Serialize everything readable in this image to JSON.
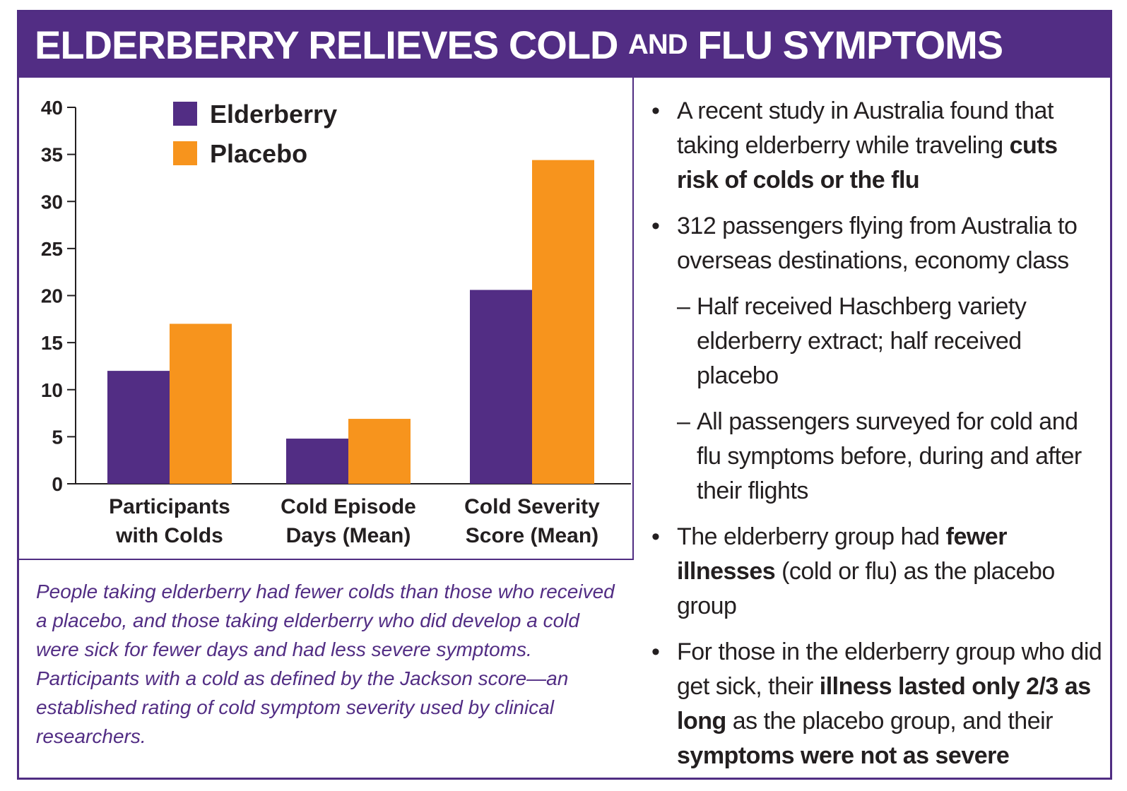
{
  "title": {
    "main1": "ELDERBERRY RELIEVES COLD",
    "small": "AND",
    "main2": "FLU SYMPTOMS"
  },
  "colors": {
    "purple": "#522d84",
    "orange": "#f7941d"
  },
  "chart_data": {
    "type": "bar",
    "categories": [
      [
        "Participants",
        "with Colds"
      ],
      [
        "Cold Episode",
        "Days (Mean)"
      ],
      [
        "Cold Severity",
        "Score (Mean)"
      ]
    ],
    "series": [
      {
        "name": "Elderberry",
        "color": "#522d84",
        "values": [
          12,
          4.8,
          20.6
        ]
      },
      {
        "name": "Placebo",
        "color": "#f7941d",
        "values": [
          17,
          6.9,
          34.4
        ]
      }
    ],
    "ylim": [
      0,
      40
    ],
    "yticks": [
      "0",
      "5",
      "10",
      "15",
      "20",
      "25",
      "30",
      "35",
      "40"
    ],
    "legend": "top-left",
    "grid": false
  },
  "caption": "People taking elderberry had fewer colds than those who received a placebo, and those taking elderberry who did develop a cold were sick for fewer days and had less severe symptoms. Participants with a cold as defined by the Jackson score—an established rating of cold symptom severity used by clinical researchers.",
  "bullets": {
    "dot": "•",
    "dash": "–",
    "b1": {
      "t1": "A recent study in Australia found that taking elderberry while traveling ",
      "bold": "cuts risk of colds or the flu"
    },
    "b2": {
      "t1": "312 passengers flying from Australia to overseas destinations, economy class"
    },
    "s1": {
      "t1": "Half received Haschberg variety elderberry extract; half received placebo"
    },
    "s2": {
      "t1": "All passengers surveyed for cold and flu symptoms before, during and after their flights"
    },
    "b3": {
      "t1": "The elderberry group had ",
      "bold": "fewer illnesses",
      "t2": " (cold or flu) as the placebo group"
    },
    "b4": {
      "t1": "For those in the elderberry group who did get sick, their ",
      "bold1": "illness lasted only 2/3 as long",
      "t2": " as the placebo group, and their ",
      "bold2": "symptoms were not as severe"
    }
  }
}
